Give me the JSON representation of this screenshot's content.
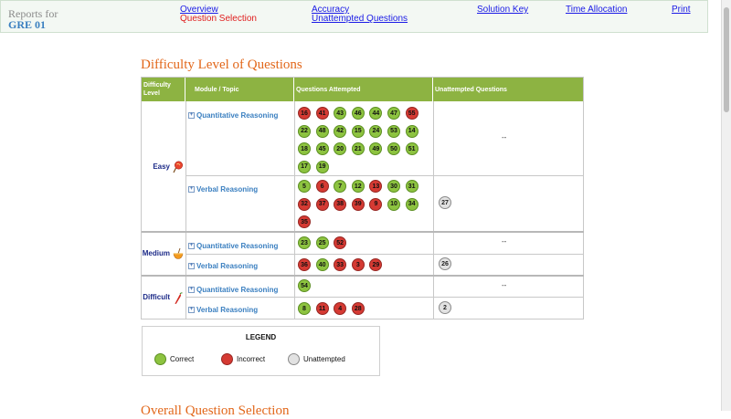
{
  "header": {
    "report_label": "Reports for",
    "report_name": "GRE 01",
    "nav": {
      "overview": "Overview",
      "question_selection": "Question Selection",
      "accuracy": "Accuracy",
      "unattempted_questions": "Unattempted Questions",
      "solution_key": "Solution Key",
      "time_allocation": "Time Allocation",
      "print": "Print"
    }
  },
  "section_title": "Difficulty Level of Questions",
  "next_section_title": "Overall Question Selection",
  "table": {
    "headers": {
      "difficulty": "Difficulty Level",
      "module": "Module / Topic",
      "attempted": "Questions Attempted",
      "unattempted": "Unattempted Questions"
    },
    "levels": {
      "easy": "Easy",
      "medium": "Medium",
      "difficult": "Difficult"
    },
    "modules": {
      "quant": "Quantitative Reasoning",
      "verbal": "Verbal Reasoning"
    },
    "empty_marker": "--",
    "easy_quant": {
      "attempted": [
        {
          "n": "16",
          "s": "i"
        },
        {
          "n": "41",
          "s": "i"
        },
        {
          "n": "43",
          "s": "c"
        },
        {
          "n": "46",
          "s": "c"
        },
        {
          "n": "44",
          "s": "c"
        },
        {
          "n": "47",
          "s": "c"
        },
        {
          "n": "55",
          "s": "i"
        },
        {
          "n": "22",
          "s": "c"
        },
        {
          "n": "48",
          "s": "c"
        },
        {
          "n": "42",
          "s": "c"
        },
        {
          "n": "15",
          "s": "c"
        },
        {
          "n": "24",
          "s": "c"
        },
        {
          "n": "53",
          "s": "c"
        },
        {
          "n": "14",
          "s": "c"
        },
        {
          "n": "18",
          "s": "c"
        },
        {
          "n": "45",
          "s": "c"
        },
        {
          "n": "20",
          "s": "c"
        },
        {
          "n": "21",
          "s": "c"
        },
        {
          "n": "49",
          "s": "c"
        },
        {
          "n": "50",
          "s": "c"
        },
        {
          "n": "51",
          "s": "c"
        },
        {
          "n": "17",
          "s": "c"
        },
        {
          "n": "19",
          "s": "c"
        }
      ],
      "unattempted": []
    },
    "easy_verbal": {
      "attempted": [
        {
          "n": "5",
          "s": "c"
        },
        {
          "n": "6",
          "s": "i"
        },
        {
          "n": "7",
          "s": "c"
        },
        {
          "n": "12",
          "s": "c"
        },
        {
          "n": "13",
          "s": "i"
        },
        {
          "n": "30",
          "s": "c"
        },
        {
          "n": "31",
          "s": "c"
        },
        {
          "n": "32",
          "s": "i"
        },
        {
          "n": "37",
          "s": "i"
        },
        {
          "n": "38",
          "s": "i"
        },
        {
          "n": "39",
          "s": "i"
        },
        {
          "n": "9",
          "s": "i"
        },
        {
          "n": "10",
          "s": "c"
        },
        {
          "n": "34",
          "s": "c"
        },
        {
          "n": "35",
          "s": "i"
        }
      ],
      "unattempted": [
        "27"
      ]
    },
    "medium_quant": {
      "attempted": [
        {
          "n": "23",
          "s": "c"
        },
        {
          "n": "25",
          "s": "c"
        },
        {
          "n": "52",
          "s": "i"
        }
      ],
      "unattempted": []
    },
    "medium_verbal": {
      "attempted": [
        {
          "n": "36",
          "s": "i"
        },
        {
          "n": "40",
          "s": "c"
        },
        {
          "n": "33",
          "s": "i"
        },
        {
          "n": "3",
          "s": "i"
        },
        {
          "n": "29",
          "s": "i"
        }
      ],
      "unattempted": [
        "26"
      ]
    },
    "difficult_quant": {
      "attempted": [
        {
          "n": "54",
          "s": "c"
        }
      ],
      "unattempted": []
    },
    "difficult_verbal": {
      "attempted": [
        {
          "n": "8",
          "s": "c"
        },
        {
          "n": "11",
          "s": "i"
        },
        {
          "n": "4",
          "s": "i"
        },
        {
          "n": "28",
          "s": "i"
        }
      ],
      "unattempted": [
        "2"
      ]
    }
  },
  "legend": {
    "title": "LEGEND",
    "correct": "Correct",
    "incorrect": "Incorrect",
    "unattempted": "Unattempted"
  },
  "colors": {
    "correct": "#8dc340",
    "incorrect": "#d53a33",
    "unattempted": "#e2e2e2",
    "header_bar": "#8db342",
    "title": "#e2671a"
  },
  "icons": {
    "easy": "lollipop-icon",
    "medium": "bowl-icon",
    "difficult": "chili-icon",
    "expand": "plus-box-icon"
  }
}
